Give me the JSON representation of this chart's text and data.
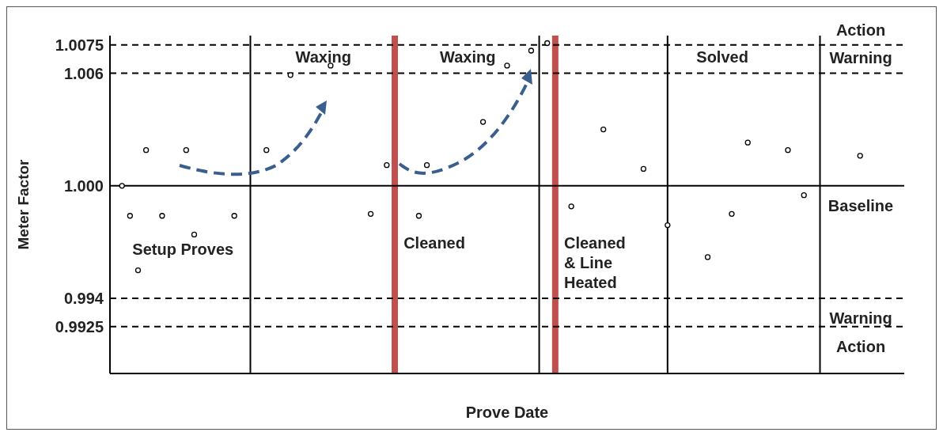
{
  "chart_data": {
    "type": "scatter",
    "xlabel": "Prove Date",
    "ylabel": "Meter Factor",
    "categories": [
      null,
      null,
      null,
      null,
      null,
      null,
      null,
      null,
      null,
      null,
      null,
      null,
      null,
      null,
      null,
      null,
      null,
      null,
      null,
      null,
      null,
      null,
      null,
      null,
      null,
      null,
      null,
      null,
      null,
      null,
      null,
      null,
      null,
      null,
      null,
      null,
      null,
      null,
      null,
      null,
      null,
      null,
      null,
      null,
      null,
      null,
      null,
      null,
      null,
      null,
      null,
      null,
      null,
      null,
      null,
      null,
      null,
      null,
      null,
      null,
      null,
      null,
      null,
      null,
      null,
      null,
      null,
      null,
      null,
      null,
      null,
      null,
      null,
      null,
      null,
      null,
      null,
      null,
      null,
      null,
      null,
      null,
      null,
      null,
      null,
      null,
      null,
      null,
      null,
      null,
      null,
      null,
      null,
      null,
      null,
      null,
      null,
      null,
      null
    ],
    "series": [
      {
        "color": "#000000",
        "values": [
          null,
          1.0,
          0.9984,
          0.9955,
          1.0019,
          null,
          0.9984,
          null,
          null,
          1.0019,
          0.9974,
          null,
          null,
          null,
          null,
          0.9984,
          null,
          null,
          null,
          1.0019,
          null,
          null,
          1.0059,
          null,
          null,
          null,
          null,
          1.0064,
          null,
          null,
          null,
          null,
          0.9985,
          null,
          1.0011,
          null,
          null,
          null,
          0.9984,
          1.0011,
          null,
          null,
          null,
          null,
          null,
          null,
          1.0034,
          null,
          null,
          1.0064,
          null,
          null,
          1.0072,
          null,
          1.0076,
          null,
          null,
          0.9989,
          null,
          null,
          null,
          1.003,
          null,
          null,
          null,
          null,
          1.0009,
          null,
          null,
          0.9979,
          null,
          null,
          null,
          null,
          0.9962,
          null,
          null,
          0.9985,
          null,
          1.0023,
          null,
          null,
          null,
          null,
          1.0019,
          null,
          0.9995,
          null,
          null,
          null,
          null,
          null,
          null,
          1.0016,
          null,
          null,
          null,
          null,
          null
        ]
      }
    ],
    "marker": "circle",
    "ylim": [
      0.99,
      1.008
    ],
    "yticks": [
      0.9925,
      0.994,
      {
        "value": 1.0,
        "label": "1.000"
      },
      1.006,
      1.0075
    ],
    "tick_labels": "y",
    "grid": true,
    "annotations": [
      "Setup Proves",
      "Waxing",
      "Waxing",
      "Solved",
      "Cleaned",
      "Cleaned & Line Heated"
    ],
    "ref_lines": [
      {
        "axis": "y",
        "value": 1.0075,
        "label": "Action",
        "color": "#000000",
        "line_style": "dashed"
      },
      {
        "axis": "y",
        "value": 1.006,
        "label": "Warning",
        "color": "#000000",
        "line_style": "dashed"
      },
      {
        "axis": "y",
        "value": 1.0,
        "label": "Baseline",
        "color": "#000000",
        "line_style": "solid"
      },
      {
        "axis": "y",
        "value": 0.994,
        "label": "Warning",
        "color": "#000000",
        "line_style": "dashed"
      },
      {
        "axis": "y",
        "value": 0.9925,
        "label": "Action",
        "color": "#000000",
        "line_style": "dashed"
      }
    ]
  }
}
